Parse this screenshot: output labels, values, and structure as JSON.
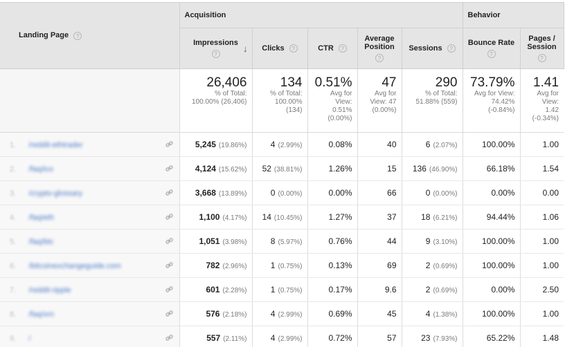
{
  "header": {
    "landing_page": "Landing Page",
    "acquisition": "Acquisition",
    "behavior": "Behavior",
    "help_glyph": "?",
    "sort_glyph": "↓",
    "columns": {
      "impressions": "Impressions",
      "clicks": "Clicks",
      "ctr": "CTR",
      "avg_position_1": "Average",
      "avg_position_2": "Position",
      "sessions": "Sessions",
      "bounce_rate": "Bounce Rate",
      "pages_session_1": "Pages /",
      "pages_session_2": "Session"
    }
  },
  "totals": {
    "impressions": {
      "value": "26,406",
      "l1": "% of Total:",
      "l2": "100.00% (26,406)"
    },
    "clicks": {
      "value": "134",
      "l1": "% of Total:",
      "l2": "100.00%",
      "l3": "(134)"
    },
    "ctr": {
      "value": "0.51%",
      "l1": "Avg for",
      "l2": "View:",
      "l3": "0.51%",
      "l4": "(0.00%)"
    },
    "avg_position": {
      "value": "47",
      "l1": "Avg for",
      "l2": "View: 47",
      "l3": "(0.00%)"
    },
    "sessions": {
      "value": "290",
      "l1": "% of Total:",
      "l2": "51.88% (559)"
    },
    "bounce_rate": {
      "value": "73.79%",
      "l1": "Avg for View:",
      "l2": "74.42%",
      "l3": "(-0.84%)"
    },
    "pages_session": {
      "value": "1.41",
      "l1": "Avg for",
      "l2": "View:",
      "l3": "1.42",
      "l4": "(-0.34%)"
    }
  },
  "rows": [
    {
      "index": "1.",
      "page": "/reddit-ethtrader",
      "impressions": "5,245",
      "impressions_pct": "(19.86%)",
      "clicks": "4",
      "clicks_pct": "(2.99%)",
      "ctr": "0.08%",
      "position": "40",
      "sessions": "6",
      "sessions_pct": "(2.07%)",
      "bounce": "100.00%",
      "pages": "1.00"
    },
    {
      "index": "2.",
      "page": "/faq/ico",
      "impressions": "4,124",
      "impressions_pct": "(15.62%)",
      "clicks": "52",
      "clicks_pct": "(38.81%)",
      "ctr": "1.26%",
      "position": "15",
      "sessions": "136",
      "sessions_pct": "(46.90%)",
      "bounce": "66.18%",
      "pages": "1.54"
    },
    {
      "index": "3.",
      "page": "/crypto-glossary",
      "impressions": "3,668",
      "impressions_pct": "(13.89%)",
      "clicks": "0",
      "clicks_pct": "(0.00%)",
      "ctr": "0.00%",
      "position": "66",
      "sessions": "0",
      "sessions_pct": "(0.00%)",
      "bounce": "0.00%",
      "pages": "0.00"
    },
    {
      "index": "4.",
      "page": "/faq/eth",
      "impressions": "1,100",
      "impressions_pct": "(4.17%)",
      "clicks": "14",
      "clicks_pct": "(10.45%)",
      "ctr": "1.27%",
      "position": "37",
      "sessions": "18",
      "sessions_pct": "(6.21%)",
      "bounce": "94.44%",
      "pages": "1.06"
    },
    {
      "index": "5.",
      "page": "/faq/btc",
      "impressions": "1,051",
      "impressions_pct": "(3.98%)",
      "clicks": "8",
      "clicks_pct": "(5.97%)",
      "ctr": "0.76%",
      "position": "44",
      "sessions": "9",
      "sessions_pct": "(3.10%)",
      "bounce": "100.00%",
      "pages": "1.00"
    },
    {
      "index": "6.",
      "page": "/bitcoinexchangeguide.com",
      "impressions": "782",
      "impressions_pct": "(2.96%)",
      "clicks": "1",
      "clicks_pct": "(0.75%)",
      "ctr": "0.13%",
      "position": "69",
      "sessions": "2",
      "sessions_pct": "(0.69%)",
      "bounce": "100.00%",
      "pages": "1.00"
    },
    {
      "index": "7.",
      "page": "/reddit-ripple",
      "impressions": "601",
      "impressions_pct": "(2.28%)",
      "clicks": "1",
      "clicks_pct": "(0.75%)",
      "ctr": "0.17%",
      "position": "9.6",
      "sessions": "2",
      "sessions_pct": "(0.69%)",
      "bounce": "0.00%",
      "pages": "2.50"
    },
    {
      "index": "8.",
      "page": "/faq/xrn",
      "impressions": "576",
      "impressions_pct": "(2.18%)",
      "clicks": "4",
      "clicks_pct": "(2.99%)",
      "ctr": "0.69%",
      "position": "45",
      "sessions": "4",
      "sessions_pct": "(1.38%)",
      "bounce": "100.00%",
      "pages": "1.00"
    },
    {
      "index": "9.",
      "page": "/",
      "impressions": "557",
      "impressions_pct": "(2.11%)",
      "clicks": "4",
      "clicks_pct": "(2.99%)",
      "ctr": "0.72%",
      "position": "57",
      "sessions": "23",
      "sessions_pct": "(7.93%)",
      "bounce": "65.22%",
      "pages": "1.48"
    }
  ]
}
